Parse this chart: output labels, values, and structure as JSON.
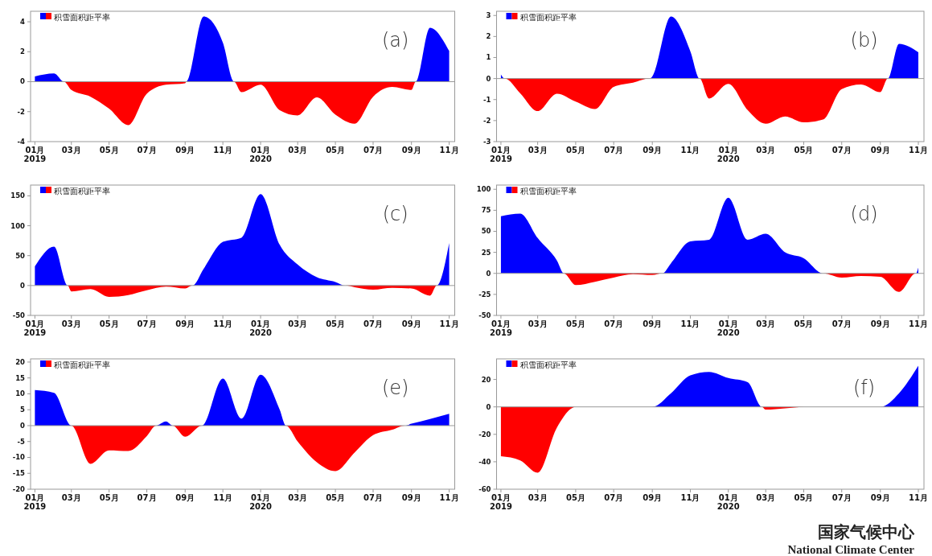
{
  "chart_data": [
    {
      "type": "area",
      "title": "(a)",
      "legend": "top left",
      "x": [
        "2019-01-01",
        "2019-02-01",
        "2019-02-17",
        "2019-03-01",
        "2019-04-01",
        "2019-05-01",
        "2019-06-01",
        "2019-07-01",
        "2019-08-01",
        "2019-09-01",
        "2019-09-03",
        "2019-10-01",
        "2019-11-01",
        "2019-11-19",
        "2019-12-01",
        "2020-01-01",
        "2020-02-01",
        "2020-03-01",
        "2020-04-01",
        "2020-05-01",
        "2020-06-01",
        "2020-07-01",
        "2020-08-01",
        "2020-09-01",
        "2020-09-08",
        "2020-10-01",
        "2020-11-01"
      ],
      "series": [
        {
          "name": "积雪面积距平率",
          "color": "#0000ff",
          "values": [
            0.35,
            0.55,
            0,
            0,
            0,
            0,
            0,
            0,
            0,
            0,
            0,
            4.35,
            2.6,
            0,
            0,
            0,
            0,
            0,
            0,
            0,
            0,
            0,
            0,
            0,
            0,
            3.6,
            2.05
          ]
        },
        {
          "color": "#ff0000",
          "values": [
            0,
            0,
            0,
            -0.55,
            -1.0,
            -1.8,
            -2.9,
            -0.8,
            -0.2,
            -0.1,
            0,
            0,
            0,
            0,
            -0.7,
            -0.2,
            -1.9,
            -2.25,
            -1.05,
            -2.2,
            -2.8,
            -1.0,
            -0.35,
            -0.55,
            0,
            0,
            0
          ]
        }
      ],
      "xlim": [
        "2018-12-25",
        "2020-11-10"
      ],
      "xticks": [
        {
          "value": "2019-01-01",
          "label": "01月\n2019"
        },
        {
          "value": "2019-03-01",
          "label": "03月"
        },
        {
          "value": "2019-05-01",
          "label": "05月"
        },
        {
          "value": "2019-07-01",
          "label": "07月"
        },
        {
          "value": "2019-09-01",
          "label": "09月"
        },
        {
          "value": "2019-11-01",
          "label": "11月"
        },
        {
          "value": "2020-01-01",
          "label": "01月\n2020"
        },
        {
          "value": "2020-03-01",
          "label": "03月"
        },
        {
          "value": "2020-05-01",
          "label": "05月"
        },
        {
          "value": "2020-07-01",
          "label": "07月"
        },
        {
          "value": "2020-09-01",
          "label": "09月"
        },
        {
          "value": "2020-11-01",
          "label": "11月"
        }
      ],
      "ylim": [
        -4,
        4.7
      ],
      "yticks": [
        -4,
        -2,
        0,
        2,
        4
      ],
      "ref_lines": [
        {
          "axis": "y",
          "value": 0,
          "color": "#999999"
        }
      ]
    },
    {
      "type": "area",
      "title": "(b)",
      "legend": "top left",
      "x": [
        "2019-01-01",
        "2019-01-07",
        "2019-02-01",
        "2019-03-01",
        "2019-04-01",
        "2019-05-01",
        "2019-06-01",
        "2019-07-01",
        "2019-08-01",
        "2019-08-28",
        "2019-09-01",
        "2019-10-01",
        "2019-11-01",
        "2019-11-16",
        "2019-12-01",
        "2020-01-01",
        "2020-02-01",
        "2020-03-01",
        "2020-04-01",
        "2020-05-01",
        "2020-06-01",
        "2020-07-01",
        "2020-08-01",
        "2020-09-01",
        "2020-09-13",
        "2020-10-01",
        "2020-11-01"
      ],
      "series": [
        {
          "name": "积雪面积距平率",
          "color": "#0000ff",
          "values": [
            0.2,
            0,
            0,
            0,
            0,
            0,
            0,
            0,
            0,
            0,
            0.1,
            2.95,
            1.3,
            0,
            0,
            0,
            0,
            0,
            0,
            0,
            0,
            0,
            0,
            0,
            0,
            1.65,
            1.25
          ]
        },
        {
          "color": "#ff0000",
          "values": [
            0,
            0,
            -0.7,
            -1.55,
            -0.72,
            -1.1,
            -1.45,
            -0.4,
            -0.2,
            0,
            0,
            0,
            0,
            0,
            -0.95,
            -0.25,
            -1.5,
            -2.15,
            -1.8,
            -2.08,
            -1.95,
            -0.5,
            -0.28,
            -0.65,
            0,
            0,
            0
          ]
        }
      ],
      "xlim": [
        "2018-12-25",
        "2020-11-10"
      ],
      "xticks": [
        {
          "value": "2019-01-01",
          "label": "01月\n2019"
        },
        {
          "value": "2019-03-01",
          "label": "03月"
        },
        {
          "value": "2019-05-01",
          "label": "05月"
        },
        {
          "value": "2019-07-01",
          "label": "07月"
        },
        {
          "value": "2019-09-01",
          "label": "09月"
        },
        {
          "value": "2019-11-01",
          "label": "11月"
        },
        {
          "value": "2020-01-01",
          "label": "01月\n2020"
        },
        {
          "value": "2020-03-01",
          "label": "03月"
        },
        {
          "value": "2020-05-01",
          "label": "05月"
        },
        {
          "value": "2020-07-01",
          "label": "07月"
        },
        {
          "value": "2020-09-01",
          "label": "09月"
        },
        {
          "value": "2020-11-01",
          "label": "11月"
        }
      ],
      "ylim": [
        -3,
        3.2
      ],
      "yticks": [
        -3,
        -2,
        -1,
        0,
        1,
        2,
        3
      ],
      "ref_lines": [
        {
          "axis": "y",
          "value": 0,
          "color": "#999999"
        }
      ]
    },
    {
      "type": "area",
      "title": "(c)",
      "legend": "top left",
      "x": [
        "2019-01-01",
        "2019-02-01",
        "2019-02-23",
        "2019-03-01",
        "2019-04-01",
        "2019-05-01",
        "2019-06-01",
        "2019-07-01",
        "2019-08-01",
        "2019-09-01",
        "2019-09-13",
        "2019-10-01",
        "2019-11-01",
        "2019-12-01",
        "2020-01-01",
        "2020-02-01",
        "2020-03-01",
        "2020-04-01",
        "2020-05-01",
        "2020-05-17",
        "2020-06-01",
        "2020-07-01",
        "2020-08-01",
        "2020-09-01",
        "2020-10-01",
        "2020-10-12",
        "2020-11-01"
      ],
      "series": [
        {
          "name": "积雪面积距平率",
          "color": "#0000ff",
          "values": [
            32,
            65,
            0,
            0,
            0,
            0,
            0,
            0,
            0,
            0,
            0,
            28,
            73,
            80,
            153,
            68,
            35,
            14,
            6,
            0,
            0,
            0,
            0,
            0,
            0,
            0,
            71
          ]
        },
        {
          "color": "#ff0000",
          "values": [
            0,
            0,
            0,
            -10,
            -6,
            -19,
            -16,
            -8,
            -2,
            -5,
            0,
            0,
            0,
            0,
            0,
            0,
            0,
            0,
            0,
            0,
            -3,
            -7,
            -4,
            -5,
            -17,
            0,
            0
          ]
        }
      ],
      "xlim": [
        "2018-12-25",
        "2020-11-10"
      ],
      "xticks": [
        {
          "value": "2019-01-01",
          "label": "01月\n2019"
        },
        {
          "value": "2019-03-01",
          "label": "03月"
        },
        {
          "value": "2019-05-01",
          "label": "05月"
        },
        {
          "value": "2019-07-01",
          "label": "07月"
        },
        {
          "value": "2019-09-01",
          "label": "09月"
        },
        {
          "value": "2019-11-01",
          "label": "11月"
        },
        {
          "value": "2020-01-01",
          "label": "01月\n2020"
        },
        {
          "value": "2020-03-01",
          "label": "03月"
        },
        {
          "value": "2020-05-01",
          "label": "05月"
        },
        {
          "value": "2020-07-01",
          "label": "07月"
        },
        {
          "value": "2020-09-01",
          "label": "09月"
        },
        {
          "value": "2020-11-01",
          "label": "11月"
        }
      ],
      "ylim": [
        -50,
        168
      ],
      "yticks": [
        -50,
        0,
        50,
        100,
        150
      ],
      "ref_lines": [
        {
          "axis": "y",
          "value": 0,
          "color": "#999999"
        }
      ]
    },
    {
      "type": "area",
      "title": "(d)",
      "legend": "top left",
      "x": [
        "2019-01-01",
        "2019-02-01",
        "2019-03-01",
        "2019-04-01",
        "2019-04-12",
        "2019-05-01",
        "2019-06-01",
        "2019-07-01",
        "2019-08-01",
        "2019-09-01",
        "2019-09-17",
        "2019-10-01",
        "2019-11-01",
        "2019-12-01",
        "2020-01-01",
        "2020-02-01",
        "2020-03-01",
        "2020-04-01",
        "2020-05-01",
        "2020-06-01",
        "2020-07-01",
        "2020-08-01",
        "2020-09-01",
        "2020-10-01",
        "2020-10-28",
        "2020-11-01"
      ],
      "series": [
        {
          "name": "积雪面积距平率",
          "color": "#0000ff",
          "values": [
            68,
            71,
            42,
            15,
            0,
            0,
            0,
            0,
            0,
            0,
            0,
            12,
            38,
            40,
            90,
            40,
            47,
            25,
            18,
            0,
            0,
            0,
            0,
            0,
            0,
            7
          ]
        },
        {
          "color": "#ff0000",
          "values": [
            0,
            0,
            0,
            0,
            0,
            -14,
            -10,
            -5,
            -1,
            -2,
            0,
            0,
            0,
            0,
            0,
            0,
            0,
            0,
            0,
            0,
            -5,
            -3,
            -4,
            -22,
            0,
            0
          ]
        }
      ],
      "xlim": [
        "2018-12-25",
        "2020-11-10"
      ],
      "xticks": [
        {
          "value": "2019-01-01",
          "label": "01月\n2019"
        },
        {
          "value": "2019-03-01",
          "label": "03月"
        },
        {
          "value": "2019-05-01",
          "label": "05月"
        },
        {
          "value": "2019-07-01",
          "label": "07月"
        },
        {
          "value": "2019-09-01",
          "label": "09月"
        },
        {
          "value": "2019-11-01",
          "label": "11月"
        },
        {
          "value": "2020-01-01",
          "label": "01月\n2020"
        },
        {
          "value": "2020-03-01",
          "label": "03月"
        },
        {
          "value": "2020-05-01",
          "label": "05月"
        },
        {
          "value": "2020-07-01",
          "label": "07月"
        },
        {
          "value": "2020-09-01",
          "label": "09月"
        },
        {
          "value": "2020-11-01",
          "label": "11月"
        }
      ],
      "ylim": [
        -50,
        105
      ],
      "yticks": [
        -50,
        -25,
        0,
        25,
        50,
        75,
        100
      ],
      "ref_lines": [
        {
          "axis": "y",
          "value": 0,
          "color": "#999999"
        }
      ]
    },
    {
      "type": "area",
      "title": "(e)",
      "legend": "top left",
      "x": [
        "2019-01-01",
        "2019-02-01",
        "2019-03-01",
        "2019-04-01",
        "2019-05-01",
        "2019-06-01",
        "2019-07-01",
        "2019-07-16",
        "2019-08-01",
        "2019-08-12",
        "2019-09-01",
        "2019-09-28",
        "2019-11-01",
        "2019-12-01",
        "2020-01-01",
        "2020-02-01",
        "2020-02-11",
        "2020-03-01",
        "2020-04-01",
        "2020-05-01",
        "2020-06-01",
        "2020-07-01",
        "2020-08-01",
        "2020-08-21",
        "2020-09-01",
        "2020-10-01",
        "2020-11-01"
      ],
      "series": [
        {
          "name": "积雪面积距平率",
          "color": "#0000ff",
          "values": [
            11.2,
            10.3,
            0,
            0,
            0,
            0,
            0,
            0,
            1.3,
            0,
            0,
            0,
            14.8,
            2.2,
            16,
            5,
            0,
            0,
            0,
            0,
            0,
            0,
            0,
            0,
            0.6,
            2.1,
            3.7
          ]
        },
        {
          "color": "#ff0000",
          "values": [
            0,
            0,
            0,
            -12,
            -7.8,
            -8,
            -3.3,
            0,
            0,
            0,
            -3.5,
            0,
            0,
            0,
            0,
            0,
            0,
            -5,
            -11.5,
            -14.3,
            -8.5,
            -3,
            -1.3,
            0,
            0,
            0,
            0
          ]
        }
      ],
      "xlim": [
        "2018-12-25",
        "2020-11-10"
      ],
      "xticks": [
        {
          "value": "2019-01-01",
          "label": "01月\n2019"
        },
        {
          "value": "2019-03-01",
          "label": "03月"
        },
        {
          "value": "2019-05-01",
          "label": "05月"
        },
        {
          "value": "2019-07-01",
          "label": "07月"
        },
        {
          "value": "2019-09-01",
          "label": "09月"
        },
        {
          "value": "2019-11-01",
          "label": "11月"
        },
        {
          "value": "2020-01-01",
          "label": "01月\n2020"
        },
        {
          "value": "2020-03-01",
          "label": "03月"
        },
        {
          "value": "2020-05-01",
          "label": "05月"
        },
        {
          "value": "2020-07-01",
          "label": "07月"
        },
        {
          "value": "2020-09-01",
          "label": "09月"
        },
        {
          "value": "2020-11-01",
          "label": "11月"
        }
      ],
      "ylim": [
        -20,
        21
      ],
      "yticks": [
        -20,
        -15,
        -10,
        -5,
        0,
        5,
        10,
        15,
        20
      ],
      "ref_lines": [
        {
          "axis": "y",
          "value": 0,
          "color": "#999999"
        }
      ]
    },
    {
      "type": "area",
      "title": "(f)",
      "legend": "top left",
      "x": [
        "2019-01-01",
        "2019-02-01",
        "2019-03-01",
        "2019-04-01",
        "2019-05-01",
        "2019-09-01",
        "2019-10-01",
        "2019-11-01",
        "2019-12-01",
        "2020-01-01",
        "2020-02-01",
        "2020-02-24",
        "2020-03-01",
        "2020-04-01",
        "2020-05-01",
        "2020-09-01",
        "2020-10-01",
        "2020-11-01"
      ],
      "series": [
        {
          "name": "积雪面积距平率",
          "color": "#0000ff",
          "values": [
            0,
            0,
            0,
            0,
            0,
            0,
            10,
            23,
            25.5,
            21,
            18,
            0,
            0,
            0,
            0,
            0,
            10,
            30
          ]
        },
        {
          "color": "#ff0000",
          "values": [
            -36,
            -39,
            -48,
            -15,
            0,
            0,
            0,
            0,
            0,
            0,
            0,
            0,
            -2,
            -1,
            0,
            0,
            0,
            0
          ]
        }
      ],
      "xlim": [
        "2018-12-25",
        "2020-11-10"
      ],
      "xticks": [
        {
          "value": "2019-01-01",
          "label": "01月\n2019"
        },
        {
          "value": "2019-03-01",
          "label": "03月"
        },
        {
          "value": "2019-05-01",
          "label": "05月"
        },
        {
          "value": "2019-07-01",
          "label": "07月"
        },
        {
          "value": "2019-09-01",
          "label": "09月"
        },
        {
          "value": "2019-11-01",
          "label": "11月"
        },
        {
          "value": "2020-01-01",
          "label": "01月\n2020"
        },
        {
          "value": "2020-03-01",
          "label": "03月"
        },
        {
          "value": "2020-05-01",
          "label": "05月"
        },
        {
          "value": "2020-07-01",
          "label": "07月"
        },
        {
          "value": "2020-09-01",
          "label": "09月"
        },
        {
          "value": "2020-11-01",
          "label": "11月"
        }
      ],
      "ylim": [
        -60,
        35
      ],
      "yticks": [
        -60,
        -40,
        -20,
        0,
        20
      ],
      "ref_lines": [
        {
          "axis": "y",
          "value": 0,
          "color": "#999999"
        }
      ],
      "annotations": [
        "国家气候中心",
        "National Climate Center"
      ]
    }
  ]
}
